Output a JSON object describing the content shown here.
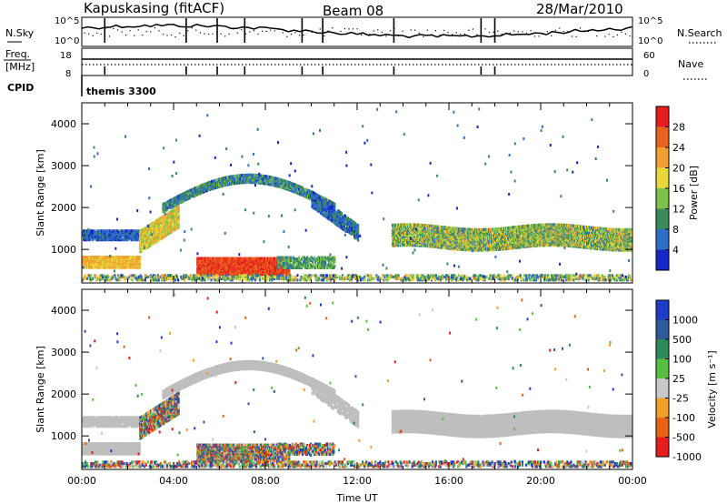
{
  "header": {
    "station": "Kapuskasing (fitACF)",
    "beam": "Beam 08",
    "date": "28/Mar/2010"
  },
  "status_panel": {
    "nsky_label": "N.Sky",
    "nsky_ticks": [
      "10^5",
      "10^0"
    ],
    "nsearch_label": "N.Search",
    "nsearch_ticks": [
      "10^5",
      "10^0"
    ],
    "freq_label": "Freq.",
    "freq_unit": "[MHz]",
    "freq_ticks": [
      "18",
      "8"
    ],
    "nave_label": "Nave",
    "nave_ticks": [
      "60",
      "0"
    ],
    "cpid_label": "CPID",
    "cpid_value": "themis 3300"
  },
  "colors": {
    "power": [
      "#1428c8",
      "#2f6ec8",
      "#3a8c5a",
      "#7cc24a",
      "#e8d83c",
      "#f0a030",
      "#e8641e",
      "#e81e1e"
    ],
    "velocity": [
      "#1e3cc8",
      "#2e5a9a",
      "#2e8a5a",
      "#58c040",
      "#c8c8c8",
      "#f0a028",
      "#e86414",
      "#e81e1e"
    ],
    "ground_scatter": "#bebebe"
  },
  "chart_data": [
    {
      "type": "heatmap",
      "name": "power",
      "ylabel": "Slant Range [km]",
      "xlim": [
        0,
        24
      ],
      "ylim": [
        200,
        4500
      ],
      "yticks": [
        "1000",
        "2000",
        "3000",
        "4000"
      ],
      "xticks": [
        "00:00",
        "04:00",
        "08:00",
        "12:00",
        "16:00",
        "20:00",
        "00:00"
      ],
      "colorbar_label": "Power [dB]",
      "colorbar_ticks": [
        "4",
        "8",
        "12",
        "16",
        "20",
        "24",
        "28"
      ]
    },
    {
      "type": "heatmap",
      "name": "velocity",
      "ylabel": "Slant Range [km]",
      "xlabel": "Time UT",
      "xlim": [
        0,
        24
      ],
      "ylim": [
        200,
        4500
      ],
      "yticks": [
        "1000",
        "2000",
        "3000",
        "4000"
      ],
      "xticks": [
        "00:00",
        "04:00",
        "08:00",
        "12:00",
        "16:00",
        "20:00",
        "00:00"
      ],
      "colorbar_label": "Velocity [m s⁻¹]",
      "colorbar_ticks": [
        "1000",
        "500",
        "100",
        "25",
        "-25",
        "-100",
        "-500",
        "-1000"
      ]
    }
  ]
}
